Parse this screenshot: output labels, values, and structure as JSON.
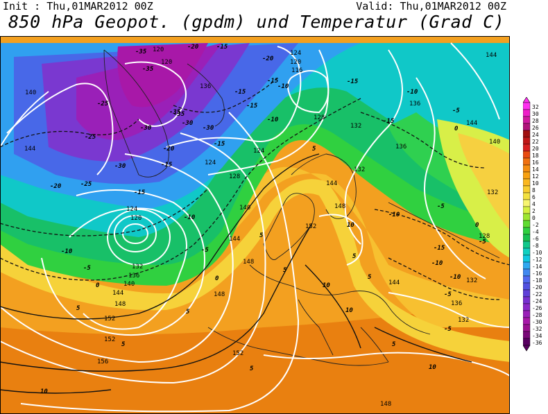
{
  "header": {
    "init": "Init : Thu,01MAR2012 00Z",
    "valid": "Valid: Thu,01MAR2012 00Z",
    "title": "850 hPa Geopot. (gpdm) und Temperatur (Grad C)"
  },
  "legend": {
    "values": [
      "32",
      "30",
      "28",
      "26",
      "24",
      "22",
      "20",
      "18",
      "16",
      "14",
      "12",
      "10",
      "8",
      "6",
      "4",
      "2",
      "0",
      "-2",
      "-4",
      "-6",
      "-8",
      "-10",
      "-12",
      "-14",
      "-16",
      "-18",
      "-20",
      "-22",
      "-24",
      "-26",
      "-28",
      "-30",
      "-32",
      "-34",
      "-36"
    ],
    "colors": [
      "#ff2ff0",
      "#ee1ec8",
      "#d0189f",
      "#b0127a",
      "#a01010",
      "#c01818",
      "#d82020",
      "#e84a10",
      "#f07010",
      "#f58c10",
      "#f7a010",
      "#fab720",
      "#f9cd30",
      "#f3e140",
      "#f7f570",
      "#d5f040",
      "#9ee630",
      "#5fdc30",
      "#2fd040",
      "#18c050",
      "#10c88a",
      "#10d0c0",
      "#10c8e0",
      "#30a8f0",
      "#4088f0",
      "#5068f0",
      "#5050e0",
      "#6040d8",
      "#7830d0",
      "#8a28c8",
      "#9a20b8",
      "#a818a8",
      "#9a1090",
      "#7a0878",
      "#580060"
    ]
  },
  "map": {
    "geopotential_labels": [
      "120",
      "120",
      "120",
      "136",
      "124",
      "120",
      "116",
      "128",
      "132",
      "128",
      "132",
      "132",
      "144",
      "140",
      "136",
      "136",
      "144",
      "120",
      "124",
      "120",
      "128",
      "124",
      "140",
      "144",
      "148",
      "152",
      "132",
      "128",
      "144",
      "140",
      "124",
      "120",
      "136",
      "132",
      "140",
      "144",
      "148",
      "152",
      "156",
      "152",
      "148",
      "148",
      "136",
      "140",
      "132",
      "144"
    ],
    "temperature_labels": [
      "-35",
      "-35",
      "-35",
      "-20",
      "-15",
      "-20",
      "-30",
      "-15",
      "-15",
      "-10",
      "-15",
      "-25",
      "-25",
      "-35",
      "-30",
      "-30",
      "-20",
      "-25",
      "-30",
      "-20",
      "-15",
      "-10",
      "-15",
      "-15",
      "-10",
      "-15",
      "-5",
      "-5",
      "-10",
      "-5",
      "-10",
      "-15",
      "-10",
      "-5",
      "0",
      "-5",
      "0",
      "-5",
      "0",
      "5",
      "5",
      "5",
      "5",
      "10",
      "10",
      "10",
      "5",
      "5",
      "5",
      "10",
      "-10",
      "-15",
      "-10",
      "0",
      "5",
      "5",
      "-5",
      "5",
      "10"
    ]
  }
}
